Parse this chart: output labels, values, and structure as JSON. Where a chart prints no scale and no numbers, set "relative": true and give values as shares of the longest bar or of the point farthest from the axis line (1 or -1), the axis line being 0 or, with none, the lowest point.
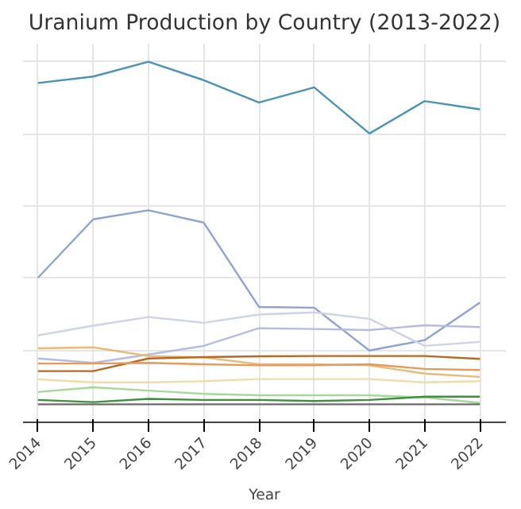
{
  "chart_data": {
    "type": "line",
    "title": "Uranium Production by Country (2013-2022)",
    "xlabel": "Year",
    "relative": true,
    "grid": true,
    "x": [
      2014,
      2015,
      2016,
      2017,
      2018,
      2019,
      2020,
      2021,
      2022
    ],
    "xlim": [
      2013.73,
      2022.47
    ],
    "xticks": [
      2014,
      2015,
      2016,
      2017,
      2018,
      2019,
      2020,
      2021,
      2022
    ],
    "series": [
      {
        "color": "#4a93b3",
        "values": [
          0.941,
          0.959,
          1.0,
          0.949,
          0.887,
          0.929,
          0.801,
          0.891,
          0.868
        ]
      },
      {
        "color": "#8fa3d0",
        "values": [
          0.401,
          0.563,
          0.588,
          0.554,
          0.32,
          0.318,
          0.199,
          0.228,
          0.332
        ]
      },
      {
        "color": "#cfd3e6",
        "values": [
          0.241,
          0.268,
          0.292,
          0.276,
          0.299,
          0.305,
          0.287,
          0.212,
          0.223
        ]
      },
      {
        "color": "#b4bde0",
        "values": [
          0.177,
          0.165,
          0.188,
          0.212,
          0.261,
          0.259,
          0.256,
          0.269,
          0.264
        ]
      },
      {
        "color": "#e9b978",
        "values": [
          0.205,
          0.208,
          0.184,
          0.18,
          0.161,
          0.161,
          0.158,
          0.135,
          0.126
        ]
      },
      {
        "color": "#b8691f",
        "values": [
          0.142,
          0.142,
          0.177,
          0.181,
          0.183,
          0.184,
          0.184,
          0.184,
          0.176
        ]
      },
      {
        "color": "#e59a5a",
        "values": [
          0.163,
          0.163,
          0.165,
          0.161,
          0.158,
          0.158,
          0.161,
          0.148,
          0.145
        ]
      },
      {
        "color": "#efdca8",
        "values": [
          0.119,
          0.111,
          0.111,
          0.114,
          0.12,
          0.12,
          0.12,
          0.111,
          0.114
        ]
      },
      {
        "color": "#a6d89a",
        "values": [
          0.084,
          0.097,
          0.088,
          0.079,
          0.075,
          0.075,
          0.075,
          0.069,
          0.054
        ]
      },
      {
        "color": "#3f8f3f",
        "values": [
          0.062,
          0.056,
          0.065,
          0.062,
          0.062,
          0.059,
          0.062,
          0.071,
          0.071
        ]
      },
      {
        "color": "#6b6b6b",
        "values": [
          0.05,
          0.05,
          0.05,
          0.05,
          0.05,
          0.05,
          0.05,
          0.05,
          0.05
        ]
      }
    ]
  }
}
